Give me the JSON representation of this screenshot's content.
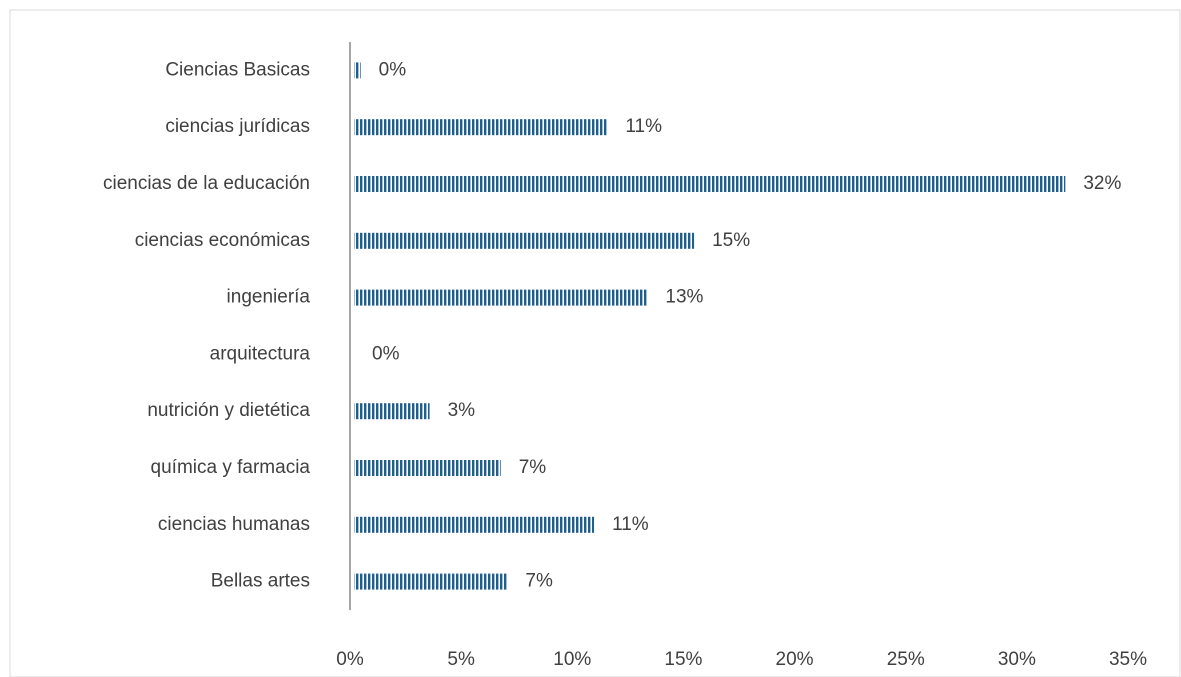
{
  "chart_data": {
    "type": "bar",
    "orientation": "horizontal",
    "categories": [
      "Ciencias Basicas",
      "ciencias jurídicas",
      "ciencias de la educación",
      "ciencias económicas",
      "ingeniería",
      "arquitectura",
      "nutrición y dietética",
      "química y farmacia",
      "ciencias humanas",
      "Bellas artes"
    ],
    "values": [
      0.3,
      11.4,
      32.0,
      15.3,
      13.2,
      0,
      3.4,
      6.6,
      10.8,
      6.9
    ],
    "value_labels": [
      "0%",
      "11%",
      "32%",
      "15%",
      "13%",
      "0%",
      "3%",
      "7%",
      "11%",
      "7%"
    ],
    "color": "#1f5f8b",
    "xlim": [
      0,
      35
    ],
    "xticks": [
      {
        "value": 0,
        "label": "0%"
      },
      {
        "value": 5,
        "label": "5%"
      },
      {
        "value": 10,
        "label": "10%"
      },
      {
        "value": 15,
        "label": "15%"
      },
      {
        "value": 20,
        "label": "20%"
      },
      {
        "value": 25,
        "label": "25%"
      },
      {
        "value": 30,
        "label": "30%"
      },
      {
        "value": 35,
        "label": "35%"
      }
    ],
    "grid": false
  }
}
